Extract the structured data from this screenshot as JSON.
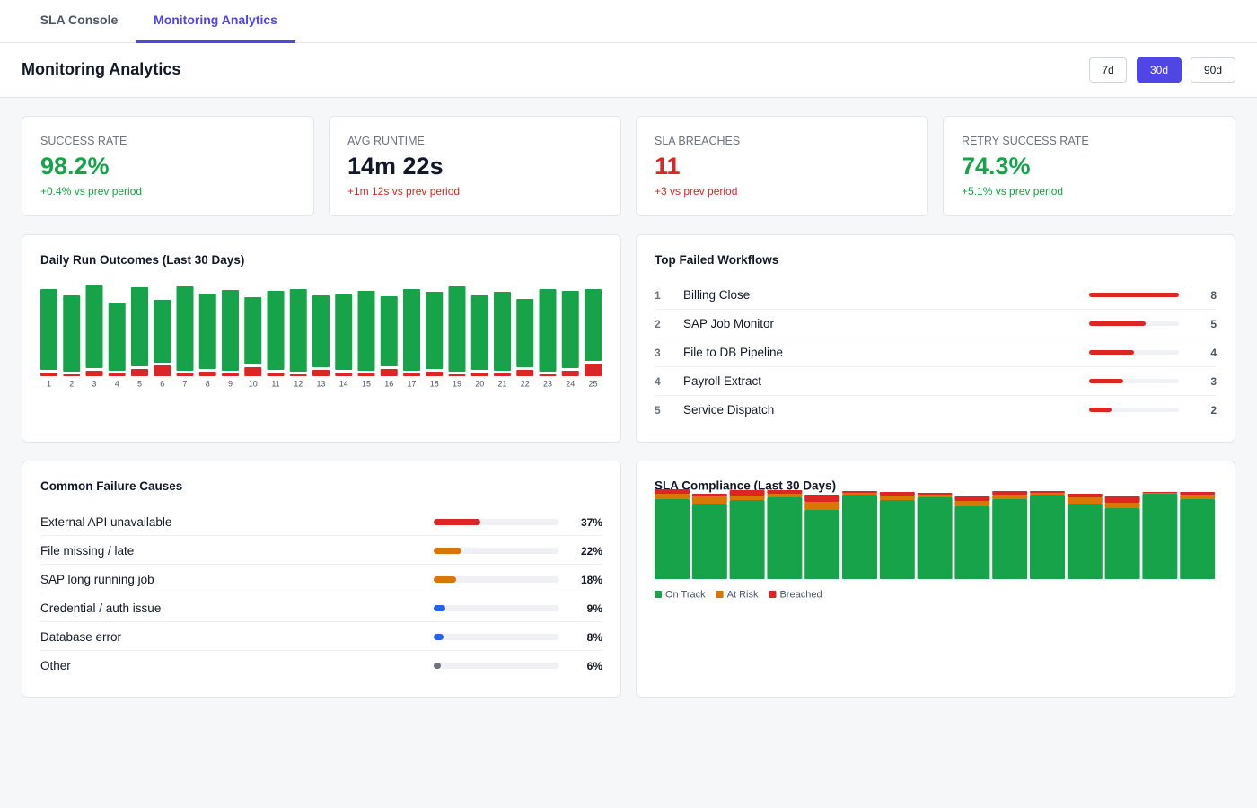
{
  "tabs": {
    "items": [
      "SLA Console",
      "Monitoring Analytics"
    ],
    "active": 1
  },
  "header": {
    "title": "Monitoring Analytics",
    "ranges": [
      "7d",
      "30d",
      "90d"
    ],
    "active_range": 1
  },
  "kpis": [
    {
      "label": "SUCCESS RATE",
      "value": "98.2%",
      "delta": "+0.4% vs prev period",
      "value_color": "#16a34a",
      "delta_color": "#16a34a"
    },
    {
      "label": "AVG RUNTIME",
      "value": "14m 22s",
      "delta": "+1m 12s vs prev period",
      "value_color": "#111827",
      "delta_color": "#dc2626"
    },
    {
      "label": "SLA BREACHES",
      "value": "11",
      "delta": "+3 vs prev period",
      "value_color": "#dc2626",
      "delta_color": "#dc2626"
    },
    {
      "label": "RETRY SUCCESS RATE",
      "value": "74.3%",
      "delta": "+5.1% vs prev period",
      "value_color": "#16a34a",
      "delta_color": "#16a34a"
    }
  ],
  "chart_data": [
    {
      "type": "bar",
      "title": "Daily Run Outcomes (Last 30 Days)",
      "stacked": true,
      "categories": [
        "1",
        "2",
        "3",
        "4",
        "5",
        "6",
        "7",
        "8",
        "9",
        "10",
        "11",
        "12",
        "13",
        "14",
        "15",
        "16",
        "17",
        "18",
        "19",
        "20",
        "21",
        "22",
        "23",
        "24",
        "25"
      ],
      "series": [
        {
          "color": "#dc2626",
          "values": [
            4,
            2,
            6,
            3,
            8,
            12,
            3,
            5,
            3,
            10,
            4,
            2,
            7,
            4,
            3,
            8,
            3,
            5,
            2,
            4,
            3,
            7,
            2,
            6,
            14
          ]
        },
        {
          "color": "#16a34a",
          "values": [
            90,
            85,
            92,
            76,
            88,
            70,
            94,
            84,
            90,
            75,
            88,
            92,
            80,
            84,
            89,
            78,
            91,
            86,
            95,
            83,
            88,
            76,
            92,
            86,
            80
          ]
        }
      ]
    },
    {
      "type": "bar",
      "title": "SLA Compliance (Last 30 Days)",
      "stacked": true,
      "series": [
        {
          "name": "On Track",
          "color": "#16a34a",
          "values": [
            89,
            84,
            88,
            91,
            77,
            94,
            88,
            91,
            81,
            89,
            94,
            84,
            79,
            95,
            89
          ]
        },
        {
          "name": "At Risk",
          "color": "#d97706",
          "values": [
            6,
            8,
            5,
            4,
            9,
            2,
            5,
            3,
            6,
            5,
            2,
            7,
            6,
            1,
            5
          ]
        },
        {
          "name": "Breached",
          "color": "#dc2626",
          "values": [
            5,
            3,
            6,
            4,
            8,
            2,
            4,
            2,
            5,
            4,
            2,
            4,
            7,
            1,
            3
          ]
        }
      ]
    }
  ],
  "top_failed": {
    "title": "Top Failed Workflows",
    "color": "#dc2626",
    "rows": [
      {
        "rank": 1,
        "name": "Billing Close",
        "count": 8
      },
      {
        "rank": 2,
        "name": "SAP Job Monitor",
        "count": 5
      },
      {
        "rank": 3,
        "name": "File to DB Pipeline",
        "count": 4
      },
      {
        "rank": 4,
        "name": "Payroll Extract",
        "count": 3
      },
      {
        "rank": 5,
        "name": "Service Dispatch",
        "count": 2
      }
    ]
  },
  "failure_causes": {
    "title": "Common Failure Causes",
    "rows": [
      {
        "name": "External API unavailable",
        "value": 37,
        "value_label": "37%",
        "color": "#dc2626"
      },
      {
        "name": "File missing / late",
        "value": 22,
        "value_label": "22%",
        "color": "#d97706"
      },
      {
        "name": "SAP long running job",
        "value": 18,
        "value_label": "18%",
        "color": "#d97706"
      },
      {
        "name": "Credential / auth issue",
        "value": 9,
        "value_label": "9%",
        "color": "#2563eb"
      },
      {
        "name": "Database error",
        "value": 8,
        "value_label": "8%",
        "color": "#2563eb"
      },
      {
        "name": "Other",
        "value": 6,
        "value_label": "6%",
        "color": "#6b7280"
      }
    ]
  }
}
